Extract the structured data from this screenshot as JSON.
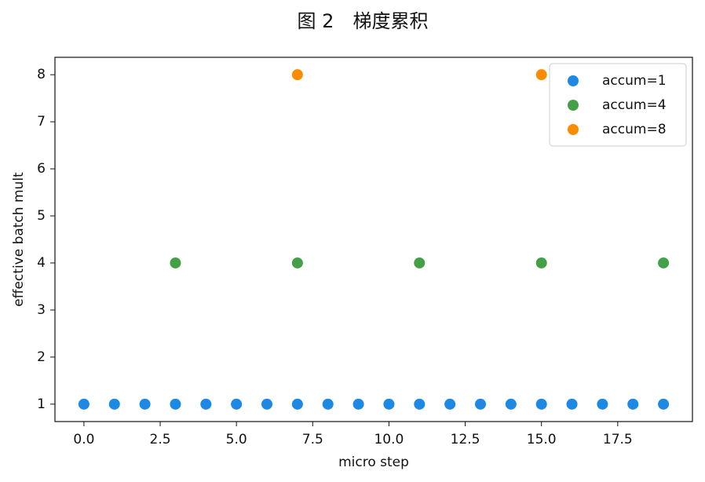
{
  "chart_data": {
    "type": "scatter",
    "title": "图 2　梯度累积",
    "x_label": "micro step",
    "y_label": "effective batch mult",
    "xlim": [
      -0.95,
      19.95
    ],
    "ylim": [
      0.63,
      8.37
    ],
    "xticks": [
      {
        "value": 0,
        "label": "0.0"
      },
      2.5,
      {
        "value": 5,
        "label": "5.0"
      },
      7.5,
      {
        "value": 10,
        "label": "10.0"
      },
      12.5,
      {
        "value": 15,
        "label": "15.0"
      },
      17.5
    ],
    "yticks": [
      1,
      2,
      3,
      4,
      5,
      6,
      7,
      8
    ],
    "legend": "upper right",
    "series": [
      {
        "name": "accum=1",
        "color": "#1e88e5",
        "x": [
          0,
          1,
          2,
          3,
          4,
          5,
          6,
          7,
          8,
          9,
          10,
          11,
          12,
          13,
          14,
          15,
          16,
          17,
          18,
          19
        ],
        "values": [
          1,
          1,
          1,
          1,
          1,
          1,
          1,
          1,
          1,
          1,
          1,
          1,
          1,
          1,
          1,
          1,
          1,
          1,
          1,
          1
        ]
      },
      {
        "name": "accum=4",
        "color": "#43a047",
        "x": [
          3,
          7,
          11,
          15,
          19
        ],
        "values": [
          4,
          4,
          4,
          4,
          4
        ]
      },
      {
        "name": "accum=8",
        "color": "#fb8c00",
        "x": [
          7,
          15
        ],
        "values": [
          8,
          8
        ]
      }
    ]
  }
}
